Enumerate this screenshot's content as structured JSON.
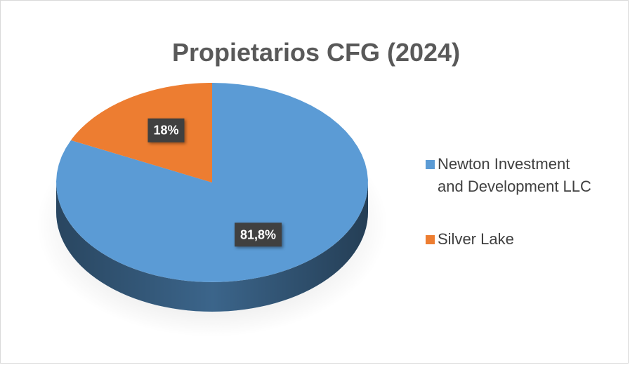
{
  "chart_data": {
    "type": "pie",
    "title": "Propietarios CFG (2024)",
    "categories": [
      "Newton Investment and Development LLC",
      "Silver Lake"
    ],
    "values": [
      81.8,
      18
    ],
    "value_labels": [
      "81,8%",
      "18%"
    ],
    "colors": [
      "#5b9bd5",
      "#ed7d31"
    ],
    "legend": "right"
  }
}
